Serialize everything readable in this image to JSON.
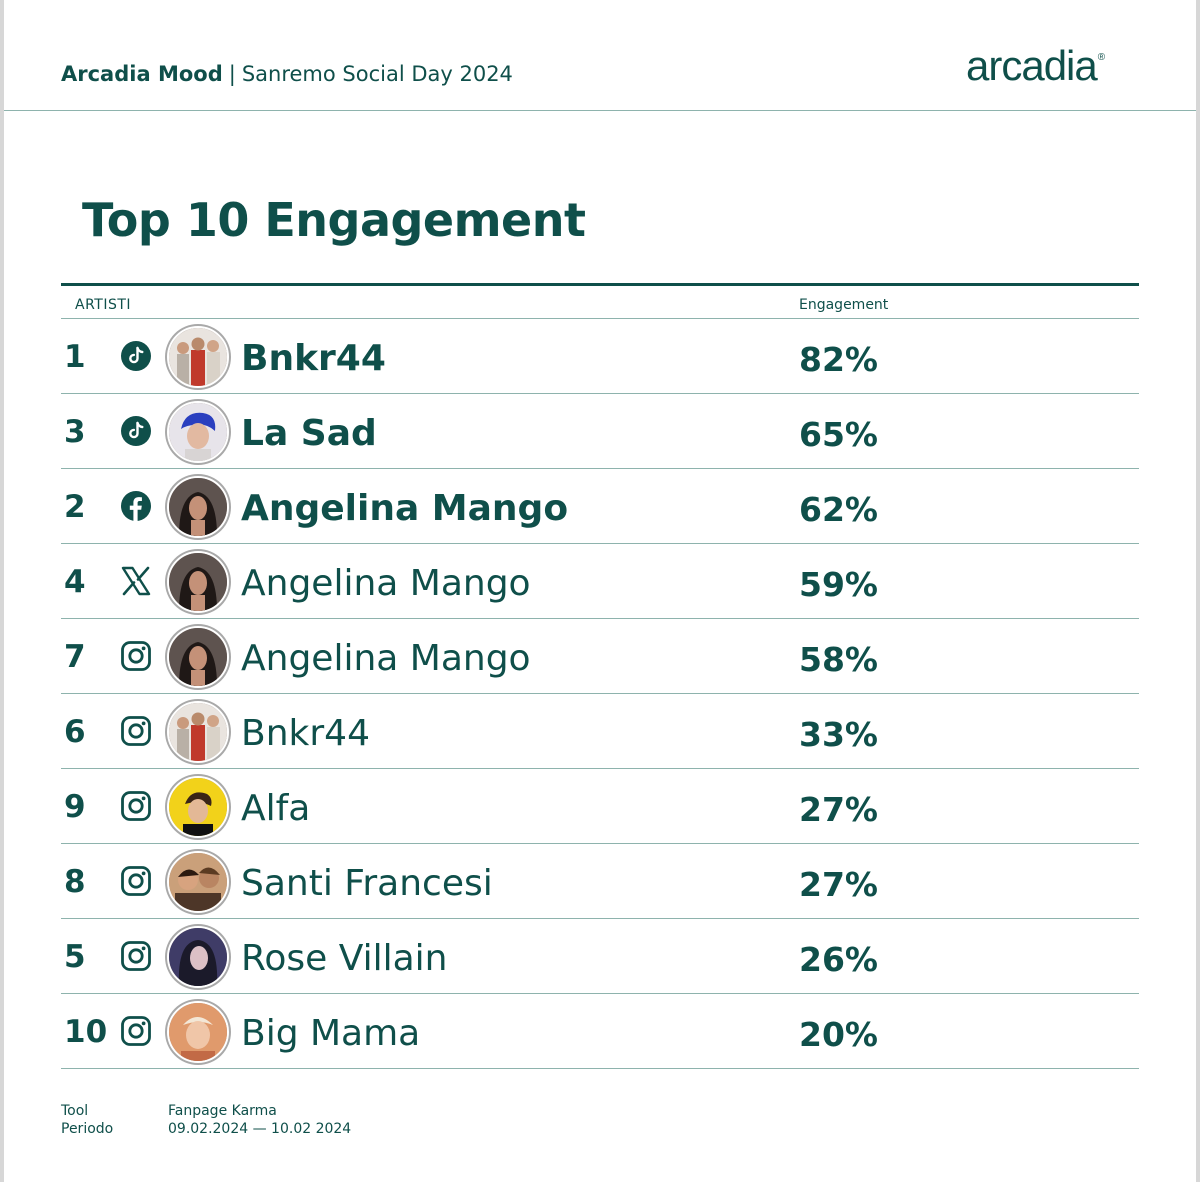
{
  "header": {
    "brand": "Arcadia Mood",
    "separator": "|",
    "subtitle": "Sanremo Social Day 2024",
    "logo_text": "arcadia",
    "logo_mark": "®"
  },
  "title": "Top 10 Engagement",
  "columns": {
    "artists": "ARTISTI",
    "engagement": "Engagement"
  },
  "rows": [
    {
      "rank": "1",
      "network": "tiktok-icon",
      "avatar": "bnkr44-avatar",
      "name": "Bnkr44",
      "engagement": "82%",
      "bold": true
    },
    {
      "rank": "3",
      "network": "tiktok-icon",
      "avatar": "la-sad-avatar",
      "name": "La Sad",
      "engagement": "65%",
      "bold": true
    },
    {
      "rank": "2",
      "network": "facebook-icon",
      "avatar": "angelina-mango-avatar",
      "name": "Angelina Mango",
      "engagement": "62%",
      "bold": true
    },
    {
      "rank": "4",
      "network": "x-icon",
      "avatar": "angelina-mango-avatar",
      "name": "Angelina Mango",
      "engagement": "59%",
      "bold": false
    },
    {
      "rank": "7",
      "network": "instagram-icon",
      "avatar": "angelina-mango-avatar",
      "name": "Angelina Mango",
      "engagement": "58%",
      "bold": false
    },
    {
      "rank": "6",
      "network": "instagram-icon",
      "avatar": "bnkr44-avatar",
      "name": "Bnkr44",
      "engagement": "33%",
      "bold": false
    },
    {
      "rank": "9",
      "network": "instagram-icon",
      "avatar": "alfa-avatar",
      "name": "Alfa",
      "engagement": "27%",
      "bold": false
    },
    {
      "rank": "8",
      "network": "instagram-icon",
      "avatar": "santi-francesi-avatar",
      "name": "Santi Francesi",
      "engagement": "27%",
      "bold": false
    },
    {
      "rank": "5",
      "network": "instagram-icon",
      "avatar": "rose-villain-avatar",
      "name": "Rose Villain",
      "engagement": "26%",
      "bold": false
    },
    {
      "rank": "10",
      "network": "instagram-icon",
      "avatar": "big-mama-avatar",
      "name": "Big Mama",
      "engagement": "20%",
      "bold": false
    }
  ],
  "footer": {
    "tool_label": "Tool",
    "period_label": "Periodo",
    "tool_value": "Fanpage Karma",
    "period_value": "09.02.2024 — 10.02 2024"
  },
  "colors": {
    "accent": "#0f4f4a",
    "rule": "#8eb3ad"
  }
}
